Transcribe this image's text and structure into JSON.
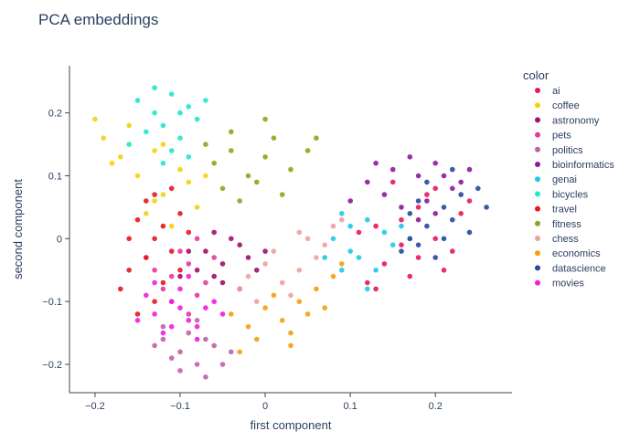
{
  "chart_data": {
    "type": "scatter",
    "title": "PCA embeddings",
    "xlabel": "first component",
    "ylabel": "second component",
    "xlim": [
      -0.23,
      0.29
    ],
    "ylim": [
      -0.245,
      0.275
    ],
    "xticks": [
      -0.2,
      -0.1,
      0,
      0.1,
      0.2
    ],
    "xtick_labels": [
      "−0.2",
      "−0.1",
      "0",
      "0.1",
      "0.2"
    ],
    "yticks": [
      -0.2,
      -0.1,
      0,
      0.1,
      0.2
    ],
    "ytick_labels": [
      "−0.2",
      "−0.1",
      "0",
      "0.1",
      "0.2"
    ],
    "grid": false,
    "legend_title": "color",
    "legend_position": "right",
    "series": [
      {
        "name": "ai",
        "color": "#e8175d",
        "points": [
          [
            0.13,
            0.02
          ],
          [
            0.16,
            -0.01
          ],
          [
            0.18,
            0.05
          ],
          [
            0.2,
            0.0
          ],
          [
            0.22,
            -0.02
          ],
          [
            0.17,
            -0.06
          ],
          [
            0.14,
            -0.04
          ],
          [
            0.12,
            -0.07
          ],
          [
            0.19,
            0.07
          ],
          [
            0.23,
            0.04
          ],
          [
            0.15,
            0.09
          ],
          [
            0.11,
            0.01
          ],
          [
            0.21,
            -0.05
          ],
          [
            0.16,
            0.03
          ],
          [
            0.18,
            -0.03
          ],
          [
            0.24,
            0.06
          ],
          [
            0.13,
            -0.08
          ],
          [
            0.2,
            0.08
          ]
        ]
      },
      {
        "name": "coffee",
        "color": "#f2d20f",
        "points": [
          [
            -0.2,
            0.19
          ],
          [
            -0.19,
            0.16
          ],
          [
            -0.17,
            0.13
          ],
          [
            -0.15,
            0.1
          ],
          [
            -0.13,
            0.14
          ],
          [
            -0.12,
            0.07
          ],
          [
            -0.1,
            0.11
          ],
          [
            -0.08,
            0.05
          ],
          [
            -0.14,
            0.04
          ],
          [
            -0.16,
            0.18
          ],
          [
            -0.11,
            0.02
          ],
          [
            -0.09,
            0.09
          ],
          [
            -0.18,
            0.12
          ],
          [
            -0.13,
            0.06
          ],
          [
            -0.07,
            0.1
          ],
          [
            -0.12,
            0.15
          ]
        ]
      },
      {
        "name": "astronomy",
        "color": "#a0106c",
        "points": [
          [
            -0.07,
            -0.02
          ],
          [
            -0.05,
            -0.04
          ],
          [
            -0.03,
            -0.01
          ],
          [
            -0.06,
            -0.06
          ],
          [
            -0.02,
            -0.03
          ],
          [
            -0.08,
            -0.05
          ],
          [
            -0.04,
            0.0
          ],
          [
            -0.01,
            -0.05
          ],
          [
            -0.09,
            -0.02
          ],
          [
            -0.05,
            -0.07
          ],
          [
            -0.03,
            -0.08
          ],
          [
            -0.06,
            0.01
          ],
          [
            0.0,
            -0.02
          ],
          [
            -0.1,
            -0.06
          ]
        ]
      },
      {
        "name": "pets",
        "color": "#e8379d",
        "points": [
          [
            -0.11,
            -0.06
          ],
          [
            -0.09,
            -0.04
          ],
          [
            -0.12,
            -0.08
          ],
          [
            -0.08,
            -0.09
          ],
          [
            -0.1,
            -0.02
          ],
          [
            -0.13,
            -0.05
          ],
          [
            -0.07,
            -0.07
          ],
          [
            -0.06,
            -0.03
          ],
          [
            -0.11,
            -0.1
          ],
          [
            -0.09,
            -0.12
          ],
          [
            -0.14,
            -0.03
          ],
          [
            -0.08,
            0.0
          ]
        ]
      },
      {
        "name": "politics",
        "color": "#c060a8",
        "points": [
          [
            -0.12,
            -0.16
          ],
          [
            -0.1,
            -0.18
          ],
          [
            -0.08,
            -0.2
          ],
          [
            -0.09,
            -0.15
          ],
          [
            -0.07,
            -0.22
          ],
          [
            -0.11,
            -0.19
          ],
          [
            -0.06,
            -0.17
          ],
          [
            -0.13,
            -0.17
          ],
          [
            -0.08,
            -0.13
          ],
          [
            -0.05,
            -0.2
          ],
          [
            -0.1,
            -0.21
          ],
          [
            -0.07,
            -0.16
          ],
          [
            -0.12,
            -0.14
          ],
          [
            -0.04,
            -0.18
          ]
        ]
      },
      {
        "name": "bioinformatics",
        "color": "#8b1a9a",
        "points": [
          [
            0.12,
            0.09
          ],
          [
            0.15,
            0.11
          ],
          [
            0.18,
            0.1
          ],
          [
            0.2,
            0.12
          ],
          [
            0.22,
            0.08
          ],
          [
            0.17,
            0.13
          ],
          [
            0.19,
            0.06
          ],
          [
            0.14,
            0.07
          ],
          [
            0.21,
            0.1
          ],
          [
            0.16,
            0.05
          ],
          [
            0.23,
            0.09
          ],
          [
            0.13,
            0.12
          ],
          [
            0.24,
            0.11
          ],
          [
            0.18,
            0.03
          ],
          [
            0.2,
            0.04
          ],
          [
            0.1,
            0.06
          ]
        ]
      },
      {
        "name": "genai",
        "color": "#1dc9e9",
        "points": [
          [
            0.08,
            0.0
          ],
          [
            0.1,
            -0.02
          ],
          [
            0.12,
            0.03
          ],
          [
            0.14,
            0.01
          ],
          [
            0.09,
            -0.05
          ],
          [
            0.11,
            -0.03
          ],
          [
            0.15,
            -0.01
          ],
          [
            0.13,
            -0.05
          ],
          [
            0.07,
            -0.03
          ],
          [
            0.16,
            0.02
          ],
          [
            0.1,
            0.02
          ],
          [
            0.12,
            -0.08
          ],
          [
            0.17,
            0.0
          ],
          [
            0.09,
            0.04
          ]
        ]
      },
      {
        "name": "bicycles",
        "color": "#1de9c9",
        "points": [
          [
            -0.15,
            0.22
          ],
          [
            -0.13,
            0.2
          ],
          [
            -0.11,
            0.23
          ],
          [
            -0.09,
            0.21
          ],
          [
            -0.12,
            0.18
          ],
          [
            -0.1,
            0.16
          ],
          [
            -0.08,
            0.19
          ],
          [
            -0.14,
            0.17
          ],
          [
            -0.11,
            0.14
          ],
          [
            -0.09,
            0.13
          ],
          [
            -0.16,
            0.15
          ],
          [
            -0.13,
            0.24
          ],
          [
            -0.07,
            0.22
          ],
          [
            -0.1,
            0.2
          ],
          [
            -0.12,
            0.12
          ]
        ]
      },
      {
        "name": "travel",
        "color": "#e8171c",
        "points": [
          [
            -0.16,
            -0.05
          ],
          [
            -0.14,
            -0.03
          ],
          [
            -0.13,
            0.0
          ],
          [
            -0.15,
            0.03
          ],
          [
            -0.12,
            -0.07
          ],
          [
            -0.11,
            -0.02
          ],
          [
            -0.1,
            0.04
          ],
          [
            -0.13,
            -0.1
          ],
          [
            -0.17,
            -0.08
          ],
          [
            -0.14,
            0.06
          ],
          [
            -0.12,
            0.02
          ],
          [
            -0.1,
            -0.05
          ],
          [
            -0.16,
            0.0
          ],
          [
            -0.11,
            0.08
          ],
          [
            -0.13,
            0.07
          ],
          [
            -0.15,
            -0.12
          ],
          [
            -0.09,
            0.01
          ]
        ]
      },
      {
        "name": "fitness",
        "color": "#8ba61a",
        "points": [
          [
            -0.06,
            0.12
          ],
          [
            -0.04,
            0.14
          ],
          [
            -0.02,
            0.1
          ],
          [
            0.0,
            0.13
          ],
          [
            -0.05,
            0.08
          ],
          [
            -0.03,
            0.06
          ],
          [
            0.01,
            0.16
          ],
          [
            -0.01,
            0.09
          ],
          [
            0.03,
            0.11
          ],
          [
            -0.07,
            0.15
          ],
          [
            0.02,
            0.07
          ],
          [
            0.05,
            0.14
          ],
          [
            -0.04,
            0.17
          ],
          [
            0.06,
            0.16
          ],
          [
            0.0,
            0.19
          ]
        ]
      },
      {
        "name": "chess",
        "color": "#f29e9e",
        "points": [
          [
            -0.02,
            -0.06
          ],
          [
            0.0,
            -0.04
          ],
          [
            0.02,
            -0.07
          ],
          [
            0.04,
            -0.05
          ],
          [
            0.01,
            -0.02
          ],
          [
            0.06,
            -0.03
          ],
          [
            0.03,
            -0.09
          ],
          [
            -0.01,
            -0.1
          ],
          [
            0.05,
            0.0
          ],
          [
            0.08,
            0.02
          ],
          [
            0.07,
            -0.01
          ],
          [
            0.09,
            0.03
          ],
          [
            -0.03,
            -0.08
          ],
          [
            0.04,
            0.01
          ]
        ]
      },
      {
        "name": "economics",
        "color": "#f2a00f",
        "points": [
          [
            -0.04,
            -0.12
          ],
          [
            -0.02,
            -0.14
          ],
          [
            0.0,
            -0.11
          ],
          [
            0.02,
            -0.13
          ],
          [
            0.04,
            -0.1
          ],
          [
            0.06,
            -0.08
          ],
          [
            -0.01,
            -0.16
          ],
          [
            0.03,
            -0.15
          ],
          [
            0.05,
            -0.12
          ],
          [
            0.08,
            -0.06
          ],
          [
            -0.03,
            -0.18
          ],
          [
            0.01,
            -0.09
          ],
          [
            0.07,
            -0.11
          ],
          [
            0.09,
            -0.04
          ],
          [
            0.03,
            -0.17
          ]
        ]
      },
      {
        "name": "datascience",
        "color": "#264a9a",
        "points": [
          [
            0.17,
            0.0
          ],
          [
            0.19,
            0.02
          ],
          [
            0.21,
            0.05
          ],
          [
            0.18,
            -0.01
          ],
          [
            0.22,
            0.03
          ],
          [
            0.2,
            -0.03
          ],
          [
            0.23,
            0.07
          ],
          [
            0.16,
            -0.02
          ],
          [
            0.24,
            0.01
          ],
          [
            0.19,
            0.09
          ],
          [
            0.22,
            0.11
          ],
          [
            0.25,
            0.08
          ],
          [
            0.18,
            0.06
          ],
          [
            0.21,
            0.0
          ],
          [
            0.17,
            0.04
          ],
          [
            0.26,
            0.05
          ]
        ]
      },
      {
        "name": "movies",
        "color": "#f21de0",
        "points": [
          [
            -0.13,
            -0.12
          ],
          [
            -0.11,
            -0.1
          ],
          [
            -0.09,
            -0.13
          ],
          [
            -0.07,
            -0.11
          ],
          [
            -0.12,
            -0.15
          ],
          [
            -0.1,
            -0.08
          ],
          [
            -0.08,
            -0.14
          ],
          [
            -0.06,
            -0.1
          ],
          [
            -0.14,
            -0.09
          ],
          [
            -0.11,
            -0.14
          ],
          [
            -0.09,
            -0.06
          ],
          [
            -0.05,
            -0.12
          ],
          [
            -0.13,
            -0.07
          ],
          [
            -0.1,
            -0.11
          ],
          [
            -0.08,
            -0.16
          ],
          [
            -0.15,
            -0.13
          ]
        ]
      }
    ]
  }
}
